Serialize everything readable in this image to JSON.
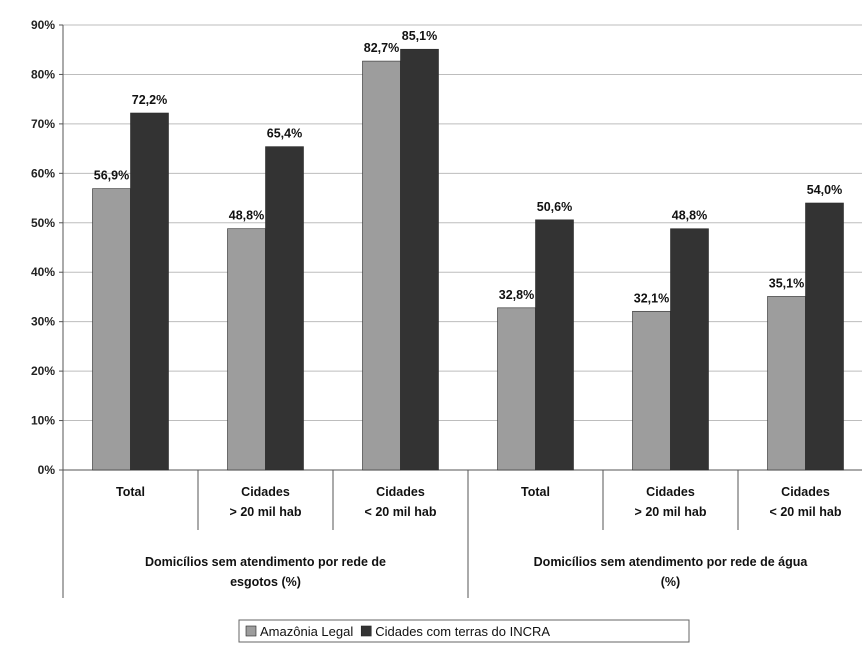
{
  "chart_data": {
    "type": "bar",
    "y_ticks": [
      "0%",
      "10%",
      "20%",
      "30%",
      "40%",
      "50%",
      "60%",
      "70%",
      "80%",
      "90%"
    ],
    "ylim": [
      0,
      90
    ],
    "categories": [
      [
        "Total"
      ],
      [
        "Cidades",
        "> 20 mil hab"
      ],
      [
        "Cidades",
        "< 20 mil hab"
      ],
      [
        "Total"
      ],
      [
        "Cidades",
        "> 20 mil hab"
      ],
      [
        "Cidades",
        "< 20 mil hab"
      ]
    ],
    "groups": [
      {
        "lines": [
          "Domicílios sem atendimento por rede de",
          "esgotos (%)"
        ],
        "span": [
          0,
          2
        ]
      },
      {
        "lines": [
          "Domicílios sem atendimento por rede de água",
          "(%)"
        ],
        "span": [
          3,
          5
        ]
      }
    ],
    "series": [
      {
        "name": "Amazônia Legal",
        "color": "#9d9d9d",
        "values": [
          56.9,
          48.8,
          82.7,
          32.8,
          32.1,
          35.1
        ],
        "labels": [
          "56,9%",
          "48,8%",
          "82,7%",
          "32,8%",
          "32,1%",
          "35,1%"
        ]
      },
      {
        "name": "Cidades com terras do INCRA",
        "color": "#333333",
        "values": [
          72.2,
          65.4,
          85.1,
          50.6,
          48.8,
          54.0
        ],
        "labels": [
          "72,2%",
          "65,4%",
          "85,1%",
          "50,6%",
          "48,8%",
          "54,0%"
        ]
      }
    ],
    "grid": true,
    "legend_position": "bottom"
  }
}
